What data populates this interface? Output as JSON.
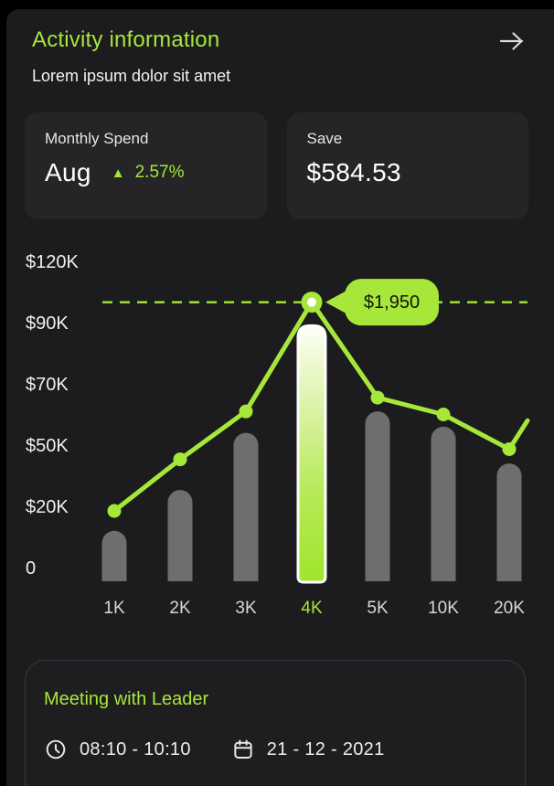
{
  "theme": {
    "accent": "#a6e73a",
    "accent_dark_text": "#121407",
    "outer_bg": "#000000",
    "app_bg": "#1c1c1e",
    "card_bg": "#252527",
    "bar_gray": "#6e6e70",
    "highlight_gradient": [
      "#fdfff6",
      "#ddf3ab",
      "#b6ea58",
      "#9fe52b"
    ],
    "text_white": "#f2f2f2"
  },
  "header": {
    "title": "Activity information",
    "subtitle": "Lorem ipsum dolor sit amet",
    "arrow_icon": "arrow-right"
  },
  "stats": [
    {
      "label": "Monthly Spend",
      "value": "Aug",
      "delta_icon": "▲",
      "delta": "2.57%"
    },
    {
      "label": "Save",
      "value": "$584.53"
    }
  ],
  "chart_data": {
    "type": "bar+line",
    "title": "",
    "xlabel": "",
    "ylabel": "",
    "grid": false,
    "legend": false,
    "categories": [
      "1K",
      "2K",
      "3K",
      "4K",
      "5K",
      "10K",
      "20K"
    ],
    "highlight_category": "4K",
    "y_ticks": [
      {
        "label": "$120K",
        "value": 120
      },
      {
        "label": "$90K",
        "value": 90
      },
      {
        "label": "$70K",
        "value": 70
      },
      {
        "label": "$50K",
        "value": 50
      },
      {
        "label": "$20K",
        "value": 20
      },
      {
        "label": "0",
        "value": 0
      }
    ],
    "series": [
      {
        "name": "spend-bars",
        "type": "bar",
        "values": [
          12,
          28,
          54,
          89,
          61,
          56,
          41
        ]
      },
      {
        "name": "trend-line",
        "type": "line",
        "values": [
          18.5,
          43,
          61,
          100,
          65.5,
          60,
          48
        ],
        "tail_value": 58
      }
    ],
    "tooltip": {
      "text": "$1,950",
      "at_category": "4K"
    },
    "threshold_line": {
      "style": "dashed",
      "at_line_value_of": "4K"
    }
  },
  "meeting": {
    "title": "Meeting with Leader",
    "time": "08:10 - 10:10",
    "date": "21 - 12 - 2021"
  }
}
